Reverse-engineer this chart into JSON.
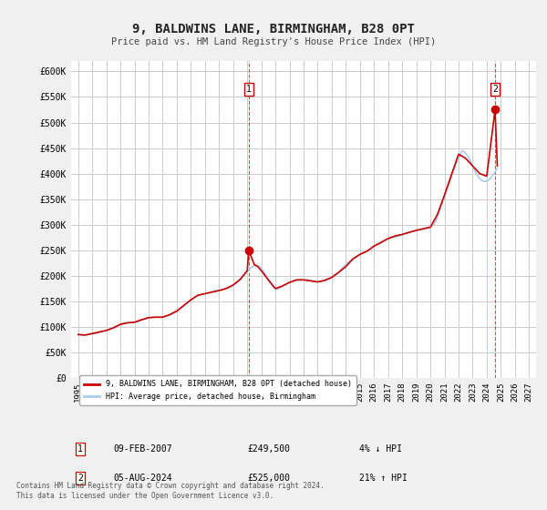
{
  "title": "9, BALDWINS LANE, BIRMINGHAM, B28 0PT",
  "subtitle": "Price paid vs. HM Land Registry's House Price Index (HPI)",
  "xlabel": "",
  "ylabel": "",
  "ylim": [
    0,
    620000
  ],
  "xlim": [
    1994.5,
    2027.5
  ],
  "yticks": [
    0,
    50000,
    100000,
    150000,
    200000,
    250000,
    300000,
    350000,
    400000,
    450000,
    500000,
    550000,
    600000
  ],
  "ytick_labels": [
    "£0",
    "£50K",
    "£100K",
    "£150K",
    "£200K",
    "£250K",
    "£300K",
    "£350K",
    "£400K",
    "£450K",
    "£500K",
    "£550K",
    "£600K"
  ],
  "xticks": [
    1995,
    1996,
    1997,
    1998,
    1999,
    2000,
    2001,
    2002,
    2003,
    2004,
    2005,
    2006,
    2007,
    2008,
    2009,
    2010,
    2011,
    2012,
    2013,
    2014,
    2015,
    2016,
    2017,
    2018,
    2019,
    2020,
    2021,
    2022,
    2023,
    2024,
    2025,
    2026,
    2027
  ],
  "bg_color": "#f0f0f0",
  "plot_bg_color": "#ffffff",
  "grid_color": "#cccccc",
  "line_color_red": "#cc0000",
  "line_color_blue": "#aaccee",
  "marker1_x": 2007.11,
  "marker1_y": 249500,
  "marker2_x": 2024.59,
  "marker2_y": 525000,
  "marker1_label": "1",
  "marker2_label": "2",
  "legend_label_red": "9, BALDWINS LANE, BIRMINGHAM, B28 0PT (detached house)",
  "legend_label_blue": "HPI: Average price, detached house, Birmingham",
  "table_row1": [
    "1",
    "09-FEB-2007",
    "£249,500",
    "4% ↓ HPI"
  ],
  "table_row2": [
    "2",
    "05-AUG-2024",
    "£525,000",
    "21% ↑ HPI"
  ],
  "footer": "Contains HM Land Registry data © Crown copyright and database right 2024.\nThis data is licensed under the Open Government Licence v3.0.",
  "hpi_x": [
    1995.0,
    1995.25,
    1995.5,
    1995.75,
    1996.0,
    1996.25,
    1996.5,
    1996.75,
    1997.0,
    1997.25,
    1997.5,
    1997.75,
    1998.0,
    1998.25,
    1998.5,
    1998.75,
    1999.0,
    1999.25,
    1999.5,
    1999.75,
    2000.0,
    2000.25,
    2000.5,
    2000.75,
    2001.0,
    2001.25,
    2001.5,
    2001.75,
    2002.0,
    2002.25,
    2002.5,
    2002.75,
    2003.0,
    2003.25,
    2003.5,
    2003.75,
    2004.0,
    2004.25,
    2004.5,
    2004.75,
    2005.0,
    2005.25,
    2005.5,
    2005.75,
    2006.0,
    2006.25,
    2006.5,
    2006.75,
    2007.0,
    2007.25,
    2007.5,
    2007.75,
    2008.0,
    2008.25,
    2008.5,
    2008.75,
    2009.0,
    2009.25,
    2009.5,
    2009.75,
    2010.0,
    2010.25,
    2010.5,
    2010.75,
    2011.0,
    2011.25,
    2011.5,
    2011.75,
    2012.0,
    2012.25,
    2012.5,
    2012.75,
    2013.0,
    2013.25,
    2013.5,
    2013.75,
    2014.0,
    2014.25,
    2014.5,
    2014.75,
    2015.0,
    2015.25,
    2015.5,
    2015.75,
    2016.0,
    2016.25,
    2016.5,
    2016.75,
    2017.0,
    2017.25,
    2017.5,
    2017.75,
    2018.0,
    2018.25,
    2018.5,
    2018.75,
    2019.0,
    2019.25,
    2019.5,
    2019.75,
    2020.0,
    2020.25,
    2020.5,
    2020.75,
    2021.0,
    2021.25,
    2021.5,
    2021.75,
    2022.0,
    2022.25,
    2022.5,
    2022.75,
    2023.0,
    2023.25,
    2023.5,
    2023.75,
    2024.0,
    2024.25,
    2024.5,
    2024.75
  ],
  "hpi_y": [
    85000,
    84000,
    84500,
    85000,
    86000,
    87000,
    89000,
    91000,
    93000,
    96000,
    99000,
    102000,
    105000,
    107000,
    108000,
    109000,
    109000,
    111000,
    113000,
    116000,
    118000,
    119000,
    119000,
    119000,
    119000,
    121000,
    123000,
    126000,
    130000,
    135000,
    141000,
    147000,
    152000,
    157000,
    161000,
    163000,
    165000,
    167000,
    169000,
    171000,
    172000,
    173000,
    175000,
    177000,
    181000,
    186000,
    192000,
    200000,
    208000,
    216000,
    220000,
    220000,
    215000,
    205000,
    192000,
    182000,
    174000,
    175000,
    180000,
    184000,
    187000,
    189000,
    191000,
    192000,
    192000,
    192000,
    191000,
    189000,
    188000,
    189000,
    191000,
    193000,
    196000,
    200000,
    207000,
    215000,
    222000,
    228000,
    233000,
    237000,
    241000,
    245000,
    249000,
    253000,
    258000,
    263000,
    267000,
    270000,
    272000,
    274000,
    276000,
    278000,
    280000,
    283000,
    285000,
    287000,
    288000,
    290000,
    292000,
    294000,
    295000,
    300000,
    315000,
    335000,
    355000,
    375000,
    395000,
    415000,
    430000,
    445000,
    440000,
    430000,
    415000,
    400000,
    390000,
    385000,
    385000,
    390000,
    400000,
    410000
  ],
  "red_x": [
    1995.0,
    1995.5,
    1996.0,
    1996.5,
    1997.0,
    1997.5,
    1998.0,
    1998.5,
    1999.0,
    1999.5,
    2000.0,
    2000.5,
    2001.0,
    2001.5,
    2002.0,
    2002.5,
    2003.0,
    2003.5,
    2004.0,
    2004.5,
    2005.0,
    2005.5,
    2006.0,
    2006.5,
    2007.0,
    2007.11,
    2007.5,
    2007.75,
    2008.0,
    2008.5,
    2009.0,
    2009.5,
    2010.0,
    2010.5,
    2011.0,
    2011.5,
    2012.0,
    2012.5,
    2013.0,
    2013.5,
    2014.0,
    2014.5,
    2015.0,
    2015.5,
    2016.0,
    2016.5,
    2017.0,
    2017.5,
    2018.0,
    2018.5,
    2019.0,
    2019.5,
    2020.0,
    2020.5,
    2021.0,
    2021.5,
    2022.0,
    2022.5,
    2023.0,
    2023.5,
    2024.0,
    2024.59,
    2024.75
  ],
  "red_y": [
    85000,
    84000,
    87000,
    90000,
    93000,
    98000,
    105000,
    108000,
    109000,
    114000,
    118000,
    119000,
    119000,
    124000,
    131000,
    142000,
    153000,
    162000,
    165000,
    168000,
    171000,
    175000,
    182000,
    193000,
    210000,
    249500,
    222000,
    218000,
    210000,
    192000,
    175000,
    180000,
    187000,
    192000,
    192000,
    190000,
    188000,
    191000,
    197000,
    207000,
    218000,
    233000,
    242000,
    248000,
    258000,
    265000,
    273000,
    278000,
    281000,
    285000,
    289000,
    292000,
    295000,
    320000,
    358000,
    398000,
    438000,
    430000,
    415000,
    400000,
    395000,
    525000,
    415000
  ]
}
